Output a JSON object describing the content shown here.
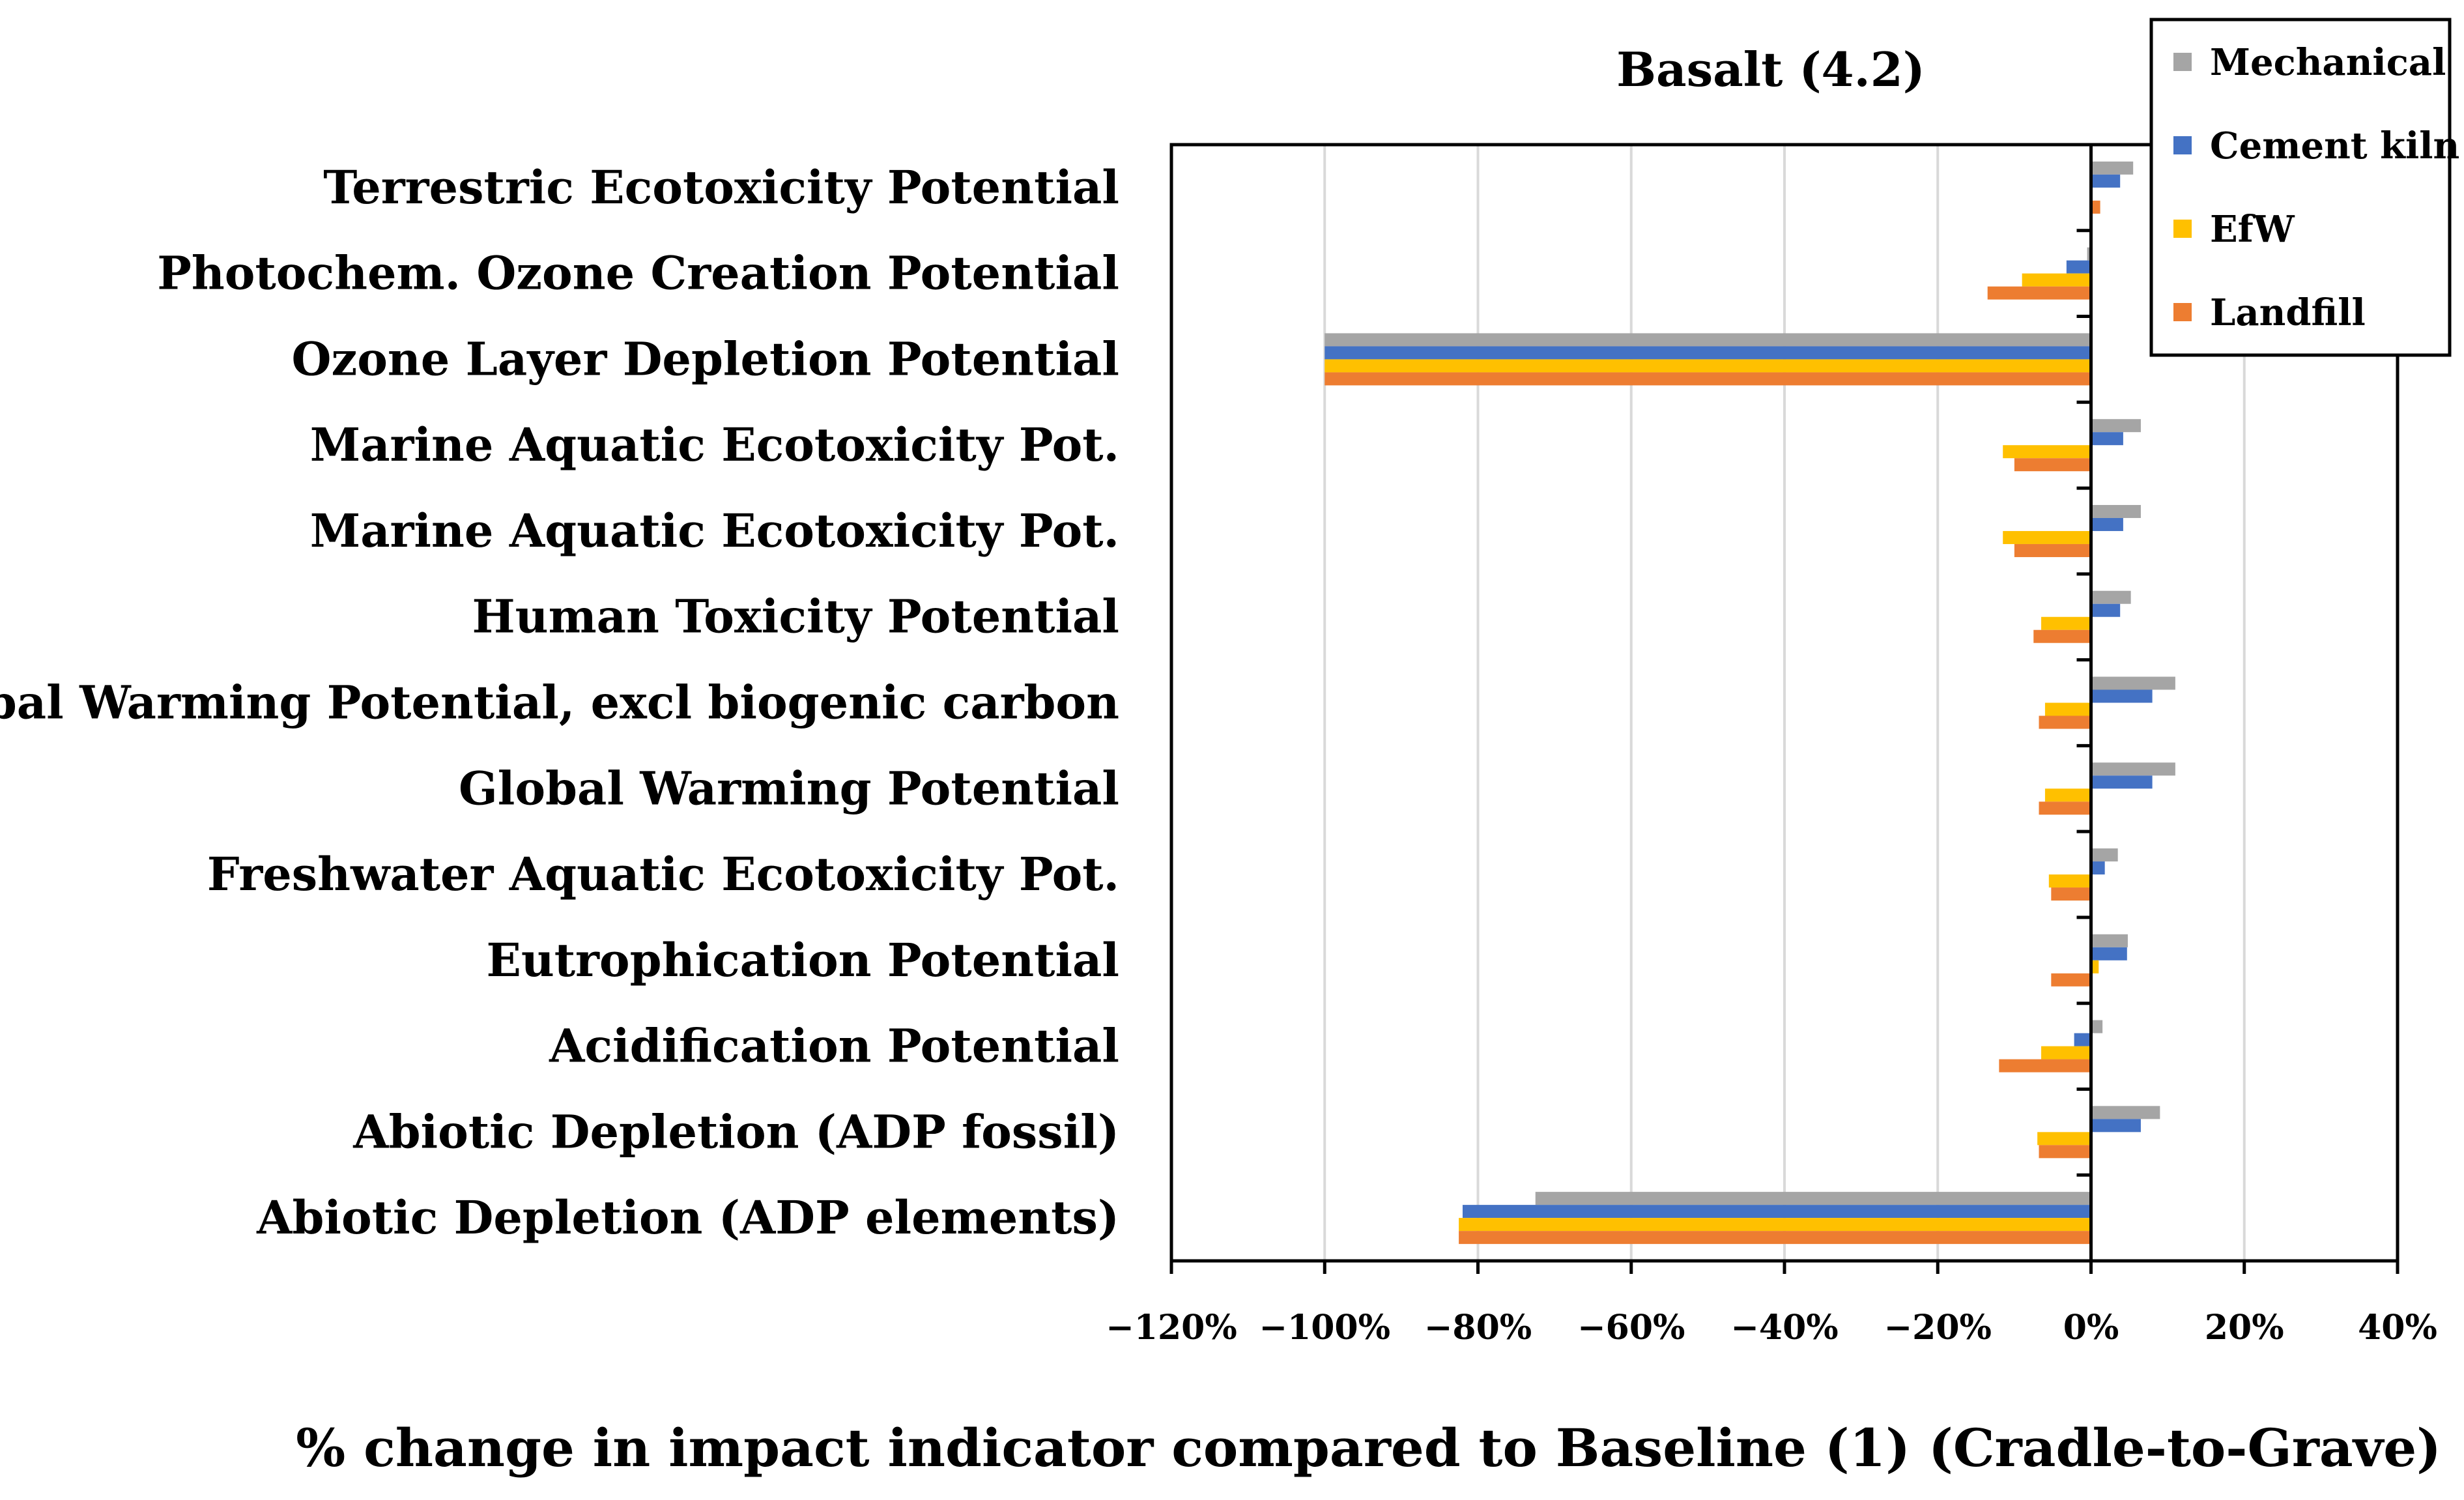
{
  "chart_data": {
    "type": "bar",
    "orientation": "horizontal",
    "title": "Basalt (4.2)",
    "xlabel": "% change in impact indicator compared to Baseline (1) (Cradle-to-Grave)",
    "ylabel": "",
    "xlim": [
      -120,
      40
    ],
    "grid": true,
    "legend_position": "top-right",
    "categories": [
      "Terrestric Ecotoxicity Potential",
      "Photochem. Ozone Creation Potential",
      "Ozone Layer Depletion Potential",
      "Marine Aquatic Ecotoxicity Pot.",
      "Marine Aquatic Ecotoxicity Pot.",
      "Human Toxicity Potential",
      "Global Warming Potential, excl biogenic carbon",
      "Global Warming Potential",
      "Freshwater Aquatic Ecotoxicity Pot.",
      "Eutrophication Potential",
      "Acidification Potential",
      "Abiotic Depletion (ADP fossil)",
      "Abiotic Depletion (ADP elements)"
    ],
    "x_ticks": [
      "−120%",
      "−100%",
      "−80%",
      "−60%",
      "−40%",
      "−20%",
      "0%",
      "20%",
      "40%"
    ],
    "x_tick_values": [
      -120,
      -100,
      -80,
      -60,
      -40,
      -20,
      0,
      20,
      40
    ],
    "series": [
      {
        "name": "Mechanical",
        "color": "#a5a5a5",
        "values": [
          5.5,
          -0.5,
          -100,
          6.5,
          6.5,
          5.2,
          11,
          11,
          3.5,
          4.8,
          1.5,
          9,
          -72.5
        ]
      },
      {
        "name": "Cement kiln",
        "color": "#4472c4",
        "values": [
          3.8,
          -3.2,
          -100,
          4.2,
          4.2,
          3.8,
          8,
          8,
          1.8,
          4.7,
          -2.2,
          6.5,
          -82
        ]
      },
      {
        "name": "EfW",
        "color": "#ffc000",
        "values": [
          0,
          -9,
          -100,
          -11.5,
          -11.5,
          -6.5,
          -6,
          -6,
          -5.5,
          1,
          -6.5,
          -7,
          -82.5
        ]
      },
      {
        "name": "Landfill",
        "color": "#ed7d31",
        "values": [
          1.2,
          -13.5,
          -100,
          -10,
          -10,
          -7.5,
          -6.8,
          -6.8,
          -5.2,
          -5.2,
          -12,
          -6.8,
          -82.5
        ]
      }
    ]
  }
}
